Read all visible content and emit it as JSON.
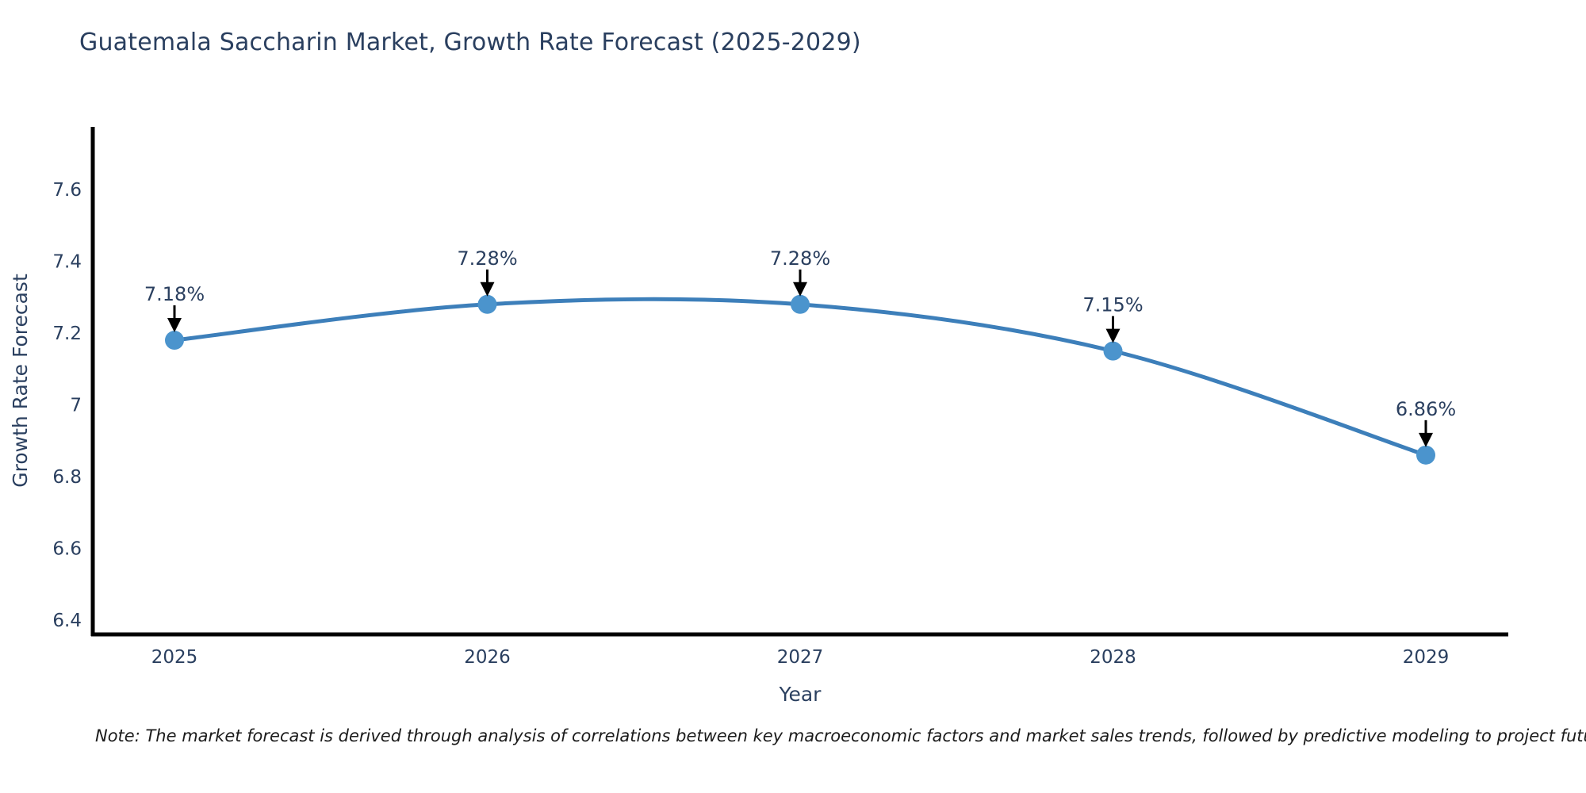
{
  "title": {
    "text": "Guatemala Saccharin Market, Growth Rate Forecast (2025-2029)",
    "color": "#2a3f5f"
  },
  "note": {
    "text": "Note: The market forecast is derived through analysis of correlations between key macroeconomic factors and market sales trends, followed by predictive modeling to project future sales"
  },
  "chart_data": {
    "type": "line",
    "title": "Guatemala Saccharin Market, Growth Rate Forecast (2025-2029)",
    "x": [
      2025,
      2026,
      2027,
      2028,
      2029
    ],
    "xtick_labels": [
      "2025",
      "2026",
      "2027",
      "2028",
      "2029"
    ],
    "series": [
      {
        "name": "Growth Rate Forecast",
        "values": [
          7.18,
          7.28,
          7.28,
          7.15,
          6.86
        ]
      }
    ],
    "point_labels": [
      "7.18%",
      "7.28%",
      "7.28%",
      "7.15%",
      "6.86%"
    ],
    "xlabel": "Year",
    "ylabel": "Growth Rate Forecast",
    "ylim": [
      6.36,
      7.78
    ],
    "yticks": [
      6.4,
      6.6,
      6.8,
      7,
      7.2,
      7.4,
      7.6
    ],
    "ytick_labels": [
      "6.4",
      "6.6",
      "6.8",
      "7",
      "7.2",
      "7.4",
      "7.6"
    ],
    "grid": false,
    "legend_position": "none",
    "colors": {
      "line": "#3d7fba",
      "marker": "#4b94cd",
      "axis": "#000000",
      "tick_label": "#2a3f5f",
      "axis_title": "#2a3f5f",
      "annotation_text": "#2a3f5f",
      "annotation_arrow": "#000000"
    }
  }
}
